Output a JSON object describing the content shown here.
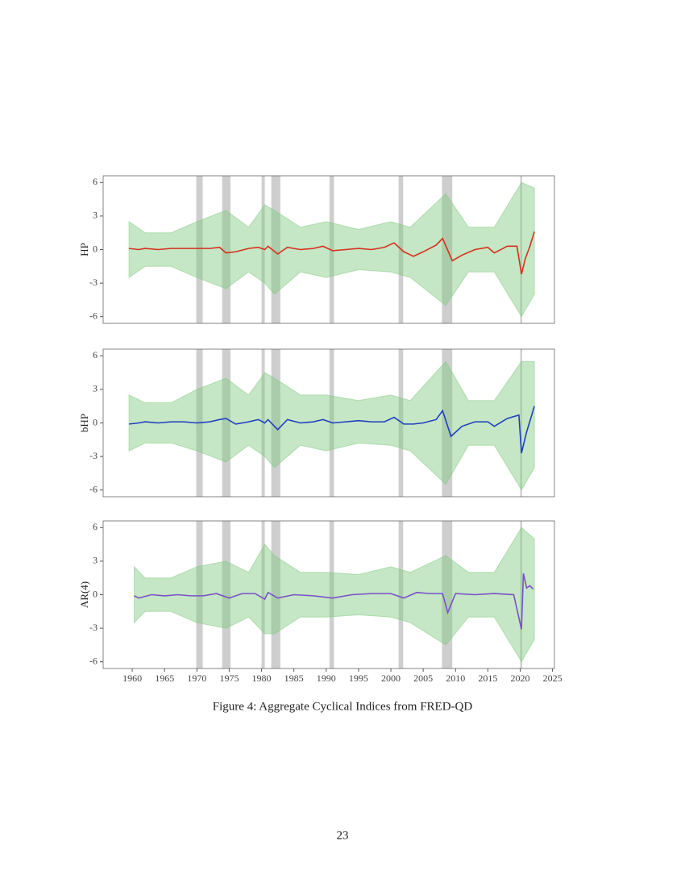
{
  "chart_data": [
    {
      "type": "line",
      "ylabel": "HP",
      "xlim": [
        1955.5,
        2025.3
      ],
      "ylim": [
        -6.6,
        6.6
      ],
      "yticks": [
        -6,
        -3,
        0,
        3,
        6
      ],
      "shading": [
        [
          1969.9,
          1970.9
        ],
        [
          1973.9,
          1975.2
        ],
        [
          1980.0,
          1980.5
        ],
        [
          1981.5,
          1982.9
        ],
        [
          1990.5,
          1991.2
        ],
        [
          2001.2,
          2001.9
        ],
        [
          2007.9,
          2009.5
        ],
        [
          2020.0,
          2020.3
        ]
      ],
      "band": {
        "color": "#7fc97f",
        "x": [
          1959.5,
          1962,
          1966,
          1970,
          1974.5,
          1978,
          1980.5,
          1982,
          1986,
          1990,
          1995,
          2000,
          2003,
          2008.5,
          2012,
          2016,
          2020.2,
          2022.2
        ],
        "upper": [
          2.5,
          1.5,
          1.5,
          2.5,
          3.5,
          2,
          4,
          3.5,
          2,
          2.5,
          1.8,
          2.5,
          2,
          5,
          2,
          2,
          6,
          5.5
        ],
        "lower": [
          -2.5,
          -1.5,
          -1.5,
          -2.5,
          -3.5,
          -2,
          -3,
          -4,
          -2,
          -2.5,
          -1.8,
          -2,
          -2.5,
          -5,
          -2,
          -2,
          -6,
          -4
        ]
      },
      "series": [
        {
          "color": "#d7301f",
          "x": [
            1959.5,
            1961,
            1962,
            1964,
            1966,
            1968,
            1970,
            1972,
            1973.5,
            1974.5,
            1976,
            1978,
            1979.5,
            1980.5,
            1981,
            1982.5,
            1984,
            1986,
            1988,
            1989.5,
            1991,
            1993,
            1995,
            1997,
            1999,
            2000.5,
            2002,
            2003.5,
            2005,
            2007,
            2008,
            2009.5,
            2011,
            2013,
            2015,
            2016,
            2018,
            2019.5,
            2020.2,
            2020.8,
            2021.5,
            2022.2
          ],
          "values": [
            0.1,
            0,
            0.1,
            0,
            0.1,
            0.1,
            0.1,
            0.1,
            0.2,
            -0.3,
            -0.2,
            0.1,
            0.2,
            0,
            0.3,
            -0.4,
            0.2,
            0,
            0.1,
            0.3,
            -0.1,
            0,
            0.1,
            0,
            0.2,
            0.6,
            -0.2,
            -0.6,
            -0.2,
            0.4,
            1.0,
            -1.0,
            -0.5,
            0,
            0.2,
            -0.3,
            0.3,
            0.3,
            -2.2,
            -0.8,
            0.3,
            1.6
          ]
        }
      ]
    },
    {
      "type": "line",
      "ylabel": "bHP",
      "xlim": [
        1955.5,
        2025.3
      ],
      "ylim": [
        -6.6,
        6.6
      ],
      "yticks": [
        -6,
        -3,
        0,
        3,
        6
      ],
      "shading": [
        [
          1969.9,
          1970.9
        ],
        [
          1973.9,
          1975.2
        ],
        [
          1980.0,
          1980.5
        ],
        [
          1981.5,
          1982.9
        ],
        [
          1990.5,
          1991.2
        ],
        [
          2001.2,
          2001.9
        ],
        [
          2007.9,
          2009.5
        ],
        [
          2020.0,
          2020.3
        ]
      ],
      "band": {
        "color": "#7fc97f",
        "x": [
          1959.5,
          1962,
          1966,
          1970,
          1974.5,
          1978,
          1980.5,
          1982,
          1986,
          1990,
          1995,
          2000,
          2003,
          2008.5,
          2012,
          2016,
          2020.2,
          2022.2
        ],
        "upper": [
          2.5,
          1.8,
          1.8,
          3,
          4,
          2.5,
          4.5,
          4,
          2.5,
          2.5,
          2,
          2.5,
          2,
          5.5,
          2,
          2,
          5.5,
          5.5
        ],
        "lower": [
          -2.5,
          -1.8,
          -1.8,
          -2.5,
          -3.5,
          -2,
          -3,
          -4,
          -2,
          -2.5,
          -1.8,
          -2,
          -2.5,
          -5.5,
          -2,
          -2,
          -6,
          -4
        ]
      },
      "series": [
        {
          "color": "#1f3fbf",
          "x": [
            1959.5,
            1961,
            1962,
            1964,
            1966,
            1968,
            1970,
            1972,
            1973.5,
            1974.5,
            1976,
            1978,
            1979.5,
            1980.5,
            1981,
            1982.5,
            1984,
            1986,
            1988,
            1989.5,
            1991,
            1993,
            1995,
            1997,
            1999,
            2000.5,
            2002,
            2003.5,
            2005,
            2007,
            2008,
            2009.3,
            2011,
            2013,
            2015,
            2016,
            2018,
            2019.8,
            2020.2,
            2021,
            2022.2
          ],
          "values": [
            -0.1,
            0,
            0.1,
            0,
            0.1,
            0.1,
            0,
            0.1,
            0.3,
            0.4,
            -0.1,
            0.1,
            0.3,
            0,
            0.3,
            -0.6,
            0.3,
            0,
            0.1,
            0.3,
            0,
            0.1,
            0.2,
            0.1,
            0.1,
            0.5,
            -0.1,
            -0.1,
            0,
            0.3,
            1.1,
            -1.2,
            -0.3,
            0.1,
            0.1,
            -0.3,
            0.4,
            0.7,
            -2.7,
            -0.8,
            1.5
          ]
        }
      ]
    },
    {
      "type": "line",
      "ylabel": "AR(4)",
      "xlim": [
        1955.5,
        2025.3
      ],
      "ylim": [
        -6.6,
        6.6
      ],
      "yticks": [
        -6,
        -3,
        0,
        3,
        6
      ],
      "xticks": [
        1960,
        1965,
        1970,
        1975,
        1980,
        1985,
        1990,
        1995,
        2000,
        2005,
        2010,
        2015,
        2020,
        2025
      ],
      "shading": [
        [
          1969.9,
          1970.9
        ],
        [
          1973.9,
          1975.2
        ],
        [
          1980.0,
          1980.5
        ],
        [
          1981.5,
          1982.9
        ],
        [
          1990.5,
          1991.2
        ],
        [
          2001.2,
          2001.9
        ],
        [
          2007.9,
          2009.5
        ],
        [
          2020.0,
          2020.3
        ]
      ],
      "band": {
        "color": "#7fc97f",
        "x": [
          1960.3,
          1962,
          1966,
          1970,
          1974.5,
          1978,
          1980.5,
          1982,
          1986,
          1990,
          1995,
          2000,
          2003,
          2008.5,
          2012,
          2016,
          2020.2,
          2022.2
        ],
        "upper": [
          2.5,
          1.5,
          1.5,
          2.5,
          3,
          2,
          4.5,
          3.5,
          2,
          2,
          1.8,
          2.5,
          2,
          3.5,
          2,
          2,
          6,
          5
        ],
        "lower": [
          -2.5,
          -1.5,
          -1.5,
          -2.5,
          -3,
          -2,
          -3.5,
          -3.5,
          -2,
          -2,
          -1.8,
          -2,
          -2.5,
          -4.5,
          -2,
          -2,
          -6,
          -4
        ]
      },
      "series": [
        {
          "color": "#7b4fc9",
          "x": [
            1960.3,
            1961,
            1963,
            1965,
            1967,
            1969,
            1971,
            1973,
            1975,
            1977,
            1979,
            1980.5,
            1981,
            1982.5,
            1985,
            1988,
            1991,
            1994,
            1997,
            2000,
            2002,
            2004,
            2006,
            2008,
            2008.8,
            2010,
            2013,
            2016,
            2019,
            2020.2,
            2020.5,
            2021,
            2021.5,
            2022
          ],
          "values": [
            -0.1,
            -0.3,
            0,
            -0.1,
            0,
            -0.1,
            -0.1,
            0.1,
            -0.3,
            0.1,
            0.1,
            -0.4,
            0.2,
            -0.3,
            0,
            -0.1,
            -0.3,
            0,
            0.1,
            0.1,
            -0.3,
            0.2,
            0.1,
            0.1,
            -1.6,
            0.1,
            0,
            0.1,
            0,
            -3.1,
            1.9,
            0.6,
            0.8,
            0.5
          ]
        }
      ]
    }
  ],
  "caption": "Figure 4:   Aggregate Cyclical Indices from FRED-QD",
  "page_number": "23"
}
